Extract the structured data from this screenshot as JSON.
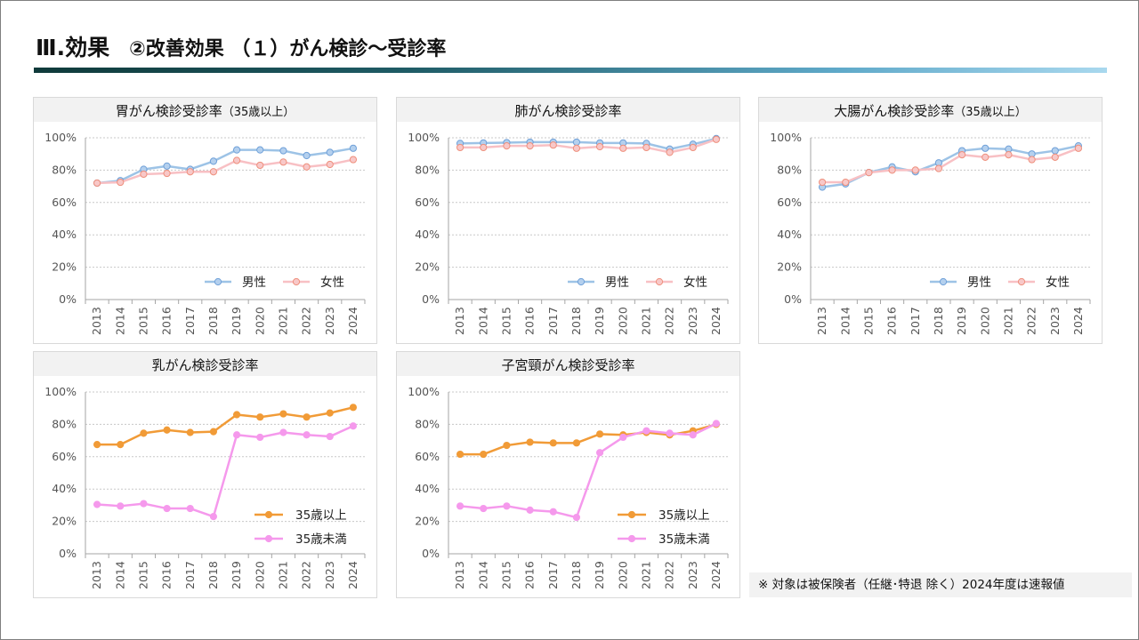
{
  "slide": {
    "heading": "Ⅲ.効果",
    "subheading": "②改善効果 （１）がん検診～受診率",
    "note": "※ 対象は被保険者（任継･特退 除く）2024年度は速報値"
  },
  "chart_data": [
    {
      "type": "line",
      "title": "胃がん検診受診率",
      "title_suffix": "（35歳以上）",
      "categories": [
        "2013",
        "2014",
        "2015",
        "2016",
        "2017",
        "2018",
        "2019",
        "2020",
        "2021",
        "2022",
        "2023",
        "2024"
      ],
      "ylim": [
        0,
        100
      ],
      "yticks": [
        "0%",
        "20%",
        "40%",
        "60%",
        "80%",
        "100%"
      ],
      "grid": true,
      "legend": "bottom-right",
      "series": [
        {
          "name": "男性",
          "color": "#9dc3e6",
          "marker": "#b4d0ee",
          "values": [
            72,
            73.5,
            80.5,
            82.5,
            80.5,
            85.5,
            92.5,
            92.5,
            92,
            89,
            91,
            93.5
          ]
        },
        {
          "name": "女性",
          "color": "#f8c0c4",
          "marker": "#f8c8c8",
          "values": [
            72,
            72.5,
            77.5,
            78,
            79,
            79,
            86,
            83,
            85,
            82,
            83.5,
            86.5
          ]
        }
      ]
    },
    {
      "type": "line",
      "title": "肺がん検診受診率",
      "title_suffix": "",
      "categories": [
        "2013",
        "2014",
        "2015",
        "2016",
        "2017",
        "2018",
        "2019",
        "2020",
        "2021",
        "2022",
        "2023",
        "2024"
      ],
      "ylim": [
        0,
        100
      ],
      "yticks": [
        "0%",
        "20%",
        "40%",
        "60%",
        "80%",
        "100%"
      ],
      "grid": true,
      "legend": "bottom-right",
      "series": [
        {
          "name": "男性",
          "color": "#9dc3e6",
          "marker": "#b4d0ee",
          "values": [
            96.5,
            96.8,
            97,
            97.3,
            97.3,
            97.3,
            96.8,
            96.8,
            96.5,
            93,
            96,
            99.5
          ]
        },
        {
          "name": "女性",
          "color": "#f8c0c4",
          "marker": "#f8c8c8",
          "values": [
            94,
            94,
            95,
            95,
            95.5,
            93.5,
            94.5,
            93.5,
            94,
            91,
            94,
            99
          ]
        }
      ]
    },
    {
      "type": "line",
      "title": "大腸がん検診受診率",
      "title_suffix": "（35歳以上）",
      "categories": [
        "2013",
        "2014",
        "2015",
        "2016",
        "2017",
        "2018",
        "2019",
        "2020",
        "2021",
        "2022",
        "2023",
        "2024"
      ],
      "ylim": [
        0,
        100
      ],
      "yticks": [
        "0%",
        "20%",
        "40%",
        "60%",
        "80%",
        "100%"
      ],
      "grid": true,
      "legend": "bottom-right",
      "series": [
        {
          "name": "男性",
          "color": "#9dc3e6",
          "marker": "#b4d0ee",
          "values": [
            69.5,
            71.5,
            78.5,
            82,
            79,
            84.5,
            92,
            93.5,
            93,
            90,
            92,
            95
          ]
        },
        {
          "name": "女性",
          "color": "#f8c0c4",
          "marker": "#f8c8c8",
          "values": [
            72.5,
            72.5,
            78.5,
            80,
            80,
            81,
            89.5,
            88,
            89.5,
            86.5,
            88,
            93.5
          ]
        }
      ]
    },
    {
      "type": "line",
      "title": "乳がん検診受診率",
      "title_suffix": "",
      "categories": [
        "2013",
        "2014",
        "2015",
        "2016",
        "2017",
        "2018",
        "2019",
        "2020",
        "2021",
        "2022",
        "2023",
        "2024"
      ],
      "ylim": [
        0,
        100
      ],
      "yticks": [
        "0%",
        "20%",
        "40%",
        "60%",
        "80%",
        "100%"
      ],
      "grid": true,
      "legend": "bottom-right",
      "series": [
        {
          "name": "35歳以上",
          "color": "#f19b37",
          "marker": "#f19b37",
          "values": [
            67.5,
            67.5,
            74.5,
            76.5,
            75,
            75.5,
            86,
            84.5,
            86.5,
            84.5,
            87,
            90.5
          ]
        },
        {
          "name": "35歳未満",
          "color": "#f599ec",
          "marker": "#f599ec",
          "values": [
            30.5,
            29.5,
            31,
            28,
            28,
            23,
            73.5,
            72,
            75,
            73.5,
            72.5,
            79
          ]
        }
      ]
    },
    {
      "type": "line",
      "title": "子宮頸がん検診受診率",
      "title_suffix": "",
      "categories": [
        "2013",
        "2014",
        "2015",
        "2016",
        "2017",
        "2018",
        "2019",
        "2020",
        "2021",
        "2022",
        "2023",
        "2024"
      ],
      "ylim": [
        0,
        100
      ],
      "yticks": [
        "0%",
        "20%",
        "40%",
        "60%",
        "80%",
        "100%"
      ],
      "grid": true,
      "legend": "bottom-right",
      "series": [
        {
          "name": "35歳以上",
          "color": "#f19b37",
          "marker": "#f19b37",
          "values": [
            61.5,
            61.5,
            67,
            69,
            68.5,
            68.5,
            74,
            73.5,
            75,
            73.5,
            76,
            80
          ]
        },
        {
          "name": "35歳未満",
          "color": "#f599ec",
          "marker": "#f599ec",
          "values": [
            29.5,
            28,
            29.5,
            27,
            26,
            22.5,
            62.5,
            72,
            76,
            74.5,
            73.5,
            80.5
          ]
        }
      ]
    }
  ]
}
